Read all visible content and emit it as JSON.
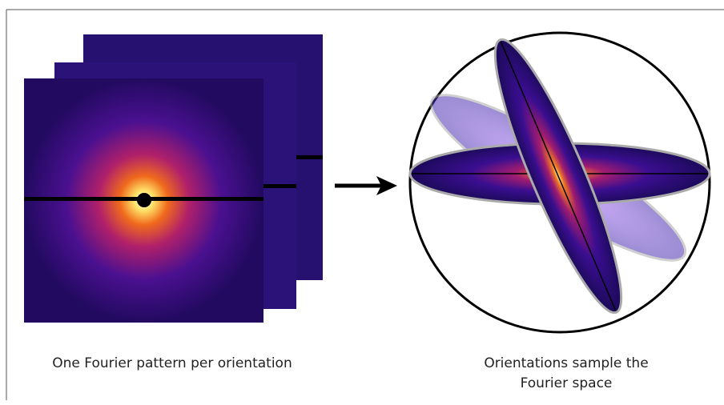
{
  "captions": {
    "left": "One Fourier pattern per orientation",
    "right": [
      "Orientations sample the",
      "Fourier space"
    ]
  }
}
